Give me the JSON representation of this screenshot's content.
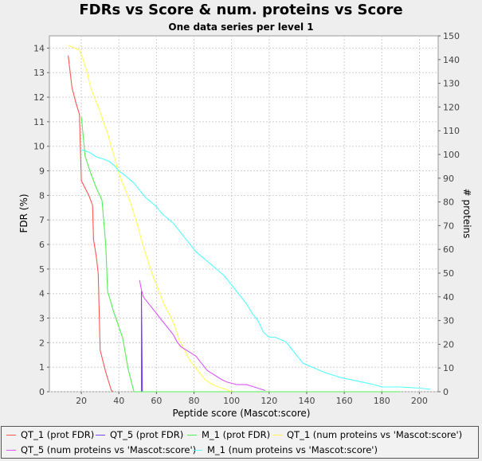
{
  "header": {
    "title": "FDRs vs Score & num. proteins vs Score",
    "subtitle": "One data series per level 1"
  },
  "chart_data": {
    "type": "line",
    "title": "FDRs vs Score & num. proteins vs Score",
    "subtitle": "One data series per level 1",
    "xlabel": "Peptide score (Mascot:score)",
    "ylabel_left": "FDR (%)",
    "ylabel_right": "# proteins",
    "xlim": [
      3,
      210
    ],
    "ylim_left": [
      0,
      14.5
    ],
    "ylim_right": [
      0,
      150
    ],
    "x_ticks": [
      20,
      40,
      60,
      80,
      100,
      120,
      140,
      160,
      180,
      200
    ],
    "y_left_ticks": [
      0,
      1,
      2,
      3,
      4,
      5,
      6,
      7,
      8,
      9,
      10,
      11,
      12,
      13,
      14
    ],
    "y_right_ticks": [
      0,
      10,
      20,
      30,
      40,
      50,
      60,
      70,
      80,
      90,
      100,
      110,
      120,
      130,
      140,
      150
    ],
    "grid": true,
    "legend_position": "bottom",
    "series": [
      {
        "name": "QT_1 (prot FDR)",
        "axis": "left",
        "color": "#ff5555",
        "points": [
          [
            13,
            13.7
          ],
          [
            15,
            12.4
          ],
          [
            17,
            11.8
          ],
          [
            19,
            11.3
          ],
          [
            20,
            8.6
          ],
          [
            24,
            8.0
          ],
          [
            26,
            7.6
          ],
          [
            26.5,
            6.2
          ],
          [
            28,
            5.5
          ],
          [
            29,
            4.8
          ],
          [
            30,
            1.7
          ],
          [
            33,
            0.8
          ],
          [
            36,
            0.05
          ],
          [
            37,
            0
          ]
        ]
      },
      {
        "name": "QT_5 (prot FDR)",
        "axis": "left",
        "color": "#7744ff",
        "points": [
          [
            52,
            0
          ],
          [
            52,
            4.1
          ],
          [
            52.5,
            0
          ],
          [
            120,
            0
          ]
        ]
      },
      {
        "name": "M_1 (prot FDR)",
        "axis": "left",
        "color": "#55ee55",
        "points": [
          [
            20,
            11.2
          ],
          [
            22,
            9.6
          ],
          [
            25,
            8.9
          ],
          [
            28,
            8.3
          ],
          [
            31,
            7.8
          ],
          [
            33,
            6.0
          ],
          [
            34,
            4.1
          ],
          [
            37,
            3.3
          ],
          [
            42,
            2.2
          ],
          [
            45,
            0.9
          ],
          [
            48,
            0
          ],
          [
            100,
            0
          ],
          [
            150,
            0
          ],
          [
            190,
            0
          ]
        ]
      },
      {
        "name": "QT_1 (num proteins vs 'Mascot:score')",
        "axis": "right",
        "color": "#ffff55",
        "points": [
          [
            13,
            146
          ],
          [
            16,
            145
          ],
          [
            19,
            144
          ],
          [
            21,
            140
          ],
          [
            23,
            135
          ],
          [
            25,
            128
          ],
          [
            27,
            124
          ],
          [
            30,
            118
          ],
          [
            32,
            113
          ],
          [
            34,
            109
          ],
          [
            36,
            103
          ],
          [
            38,
            98
          ],
          [
            40,
            92
          ],
          [
            42,
            88
          ],
          [
            44,
            84
          ],
          [
            46,
            80
          ],
          [
            48,
            75
          ],
          [
            50,
            70
          ],
          [
            52,
            64
          ],
          [
            54,
            59
          ],
          [
            56,
            54
          ],
          [
            58,
            49
          ],
          [
            60,
            45
          ],
          [
            62,
            41
          ],
          [
            64,
            37
          ],
          [
            66,
            34
          ],
          [
            68,
            31
          ],
          [
            70,
            27
          ],
          [
            72,
            22
          ],
          [
            74,
            19
          ],
          [
            76,
            16
          ],
          [
            78,
            13
          ],
          [
            80,
            11
          ],
          [
            82,
            9
          ],
          [
            84,
            7
          ],
          [
            86,
            5
          ],
          [
            88,
            4
          ],
          [
            90,
            3
          ],
          [
            93,
            2
          ],
          [
            97,
            1
          ],
          [
            100,
            0
          ]
        ]
      },
      {
        "name": "QT_5 (num proteins vs 'Mascot:score')",
        "axis": "right",
        "color": "#dd55ff",
        "points": [
          [
            51,
            47
          ],
          [
            52,
            43
          ],
          [
            53,
            40
          ],
          [
            55,
            38
          ],
          [
            57,
            36
          ],
          [
            59,
            34
          ],
          [
            61,
            32
          ],
          [
            63,
            30
          ],
          [
            65,
            28
          ],
          [
            67,
            26
          ],
          [
            69,
            24
          ],
          [
            71,
            21
          ],
          [
            73,
            19
          ],
          [
            75,
            18
          ],
          [
            77,
            17
          ],
          [
            79,
            16
          ],
          [
            81,
            15
          ],
          [
            83,
            13
          ],
          [
            85,
            11
          ],
          [
            87,
            9
          ],
          [
            89,
            8
          ],
          [
            91,
            7
          ],
          [
            93,
            6
          ],
          [
            95,
            5
          ],
          [
            98,
            4
          ],
          [
            103,
            3
          ],
          [
            108,
            3
          ],
          [
            112,
            2
          ],
          [
            116,
            1
          ],
          [
            118,
            0.5
          ]
        ]
      },
      {
        "name": "M_1 (num proteins vs 'Mascot:score')",
        "axis": "right",
        "color": "#55ffff",
        "points": [
          [
            20,
            102
          ],
          [
            24,
            101
          ],
          [
            28,
            99
          ],
          [
            32,
            98
          ],
          [
            35,
            97
          ],
          [
            38,
            95
          ],
          [
            40,
            93
          ],
          [
            42,
            92
          ],
          [
            45,
            90
          ],
          [
            48,
            88
          ],
          [
            51,
            85
          ],
          [
            54,
            82
          ],
          [
            57,
            80
          ],
          [
            60,
            78
          ],
          [
            63,
            75
          ],
          [
            66,
            73
          ],
          [
            69,
            71
          ],
          [
            72,
            68
          ],
          [
            75,
            65
          ],
          [
            78,
            62
          ],
          [
            81,
            59
          ],
          [
            84,
            57
          ],
          [
            87,
            55
          ],
          [
            90,
            53
          ],
          [
            93,
            51
          ],
          [
            96,
            49
          ],
          [
            99,
            46
          ],
          [
            102,
            43
          ],
          [
            105,
            40
          ],
          [
            108,
            37
          ],
          [
            111,
            33
          ],
          [
            114,
            30
          ],
          [
            117,
            25
          ],
          [
            120,
            23
          ],
          [
            123,
            23
          ],
          [
            126,
            22
          ],
          [
            129,
            21
          ],
          [
            132,
            18
          ],
          [
            135,
            15
          ],
          [
            138,
            12
          ],
          [
            141,
            11
          ],
          [
            144,
            10
          ],
          [
            147,
            9
          ],
          [
            150,
            8
          ],
          [
            154,
            7
          ],
          [
            158,
            6
          ],
          [
            164,
            5
          ],
          [
            170,
            4
          ],
          [
            176,
            3
          ],
          [
            180,
            2
          ],
          [
            190,
            2
          ],
          [
            200,
            1.5
          ],
          [
            206,
            1
          ]
        ]
      }
    ]
  }
}
